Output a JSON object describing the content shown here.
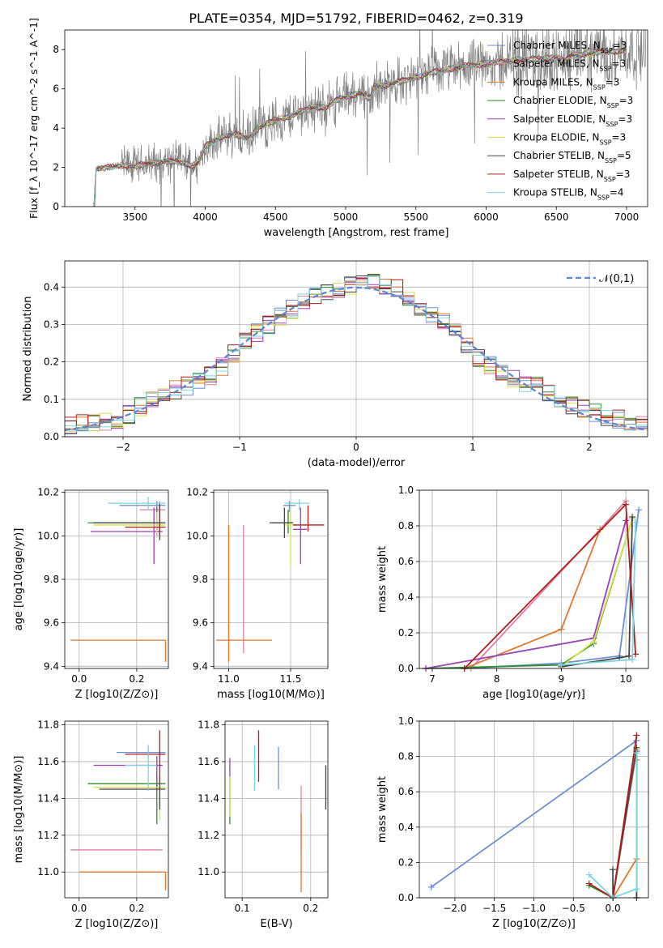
{
  "figure": {
    "title": "PLATE=0354, MJD=51792, FIBERID=0462, z=0.319"
  },
  "model_labels": [
    "Chabrier MILES, N_SSP=3",
    "Salpeter MILES, N_SSP=3",
    "Kroupa MILES, N_SSP=3",
    "Chabrier ELODIE, N_SSP=3",
    "Salpeter ELODIE, N_SSP=3",
    "Kroupa ELODIE, N_SSP=3",
    "Chabrier STELIB, N_SSP=5",
    "Salpeter STELIB, N_SSP=3",
    "Kroupa STELIB, N_SSP=4"
  ],
  "model_colors": [
    "#6a8fd6",
    "#e07fa9",
    "#e0772e",
    "#2e8b2e",
    "#9b3fb5",
    "#d8e04a",
    "#444444",
    "#b01c1c",
    "#7ad6e0"
  ],
  "chart_data": [
    {
      "id": "spectrum",
      "type": "line",
      "title": "PLATE=0354, MJD=51792, FIBERID=0462, z=0.319",
      "xlabel": "wavelength [Angstrom, rest frame]",
      "ylabel": "Flux [f_λ 10^-17 erg cm^-2 s^-1 A^-1]",
      "xlim": [
        3000,
        7150
      ],
      "ylim": [
        0,
        9
      ],
      "xticks": [
        3500,
        4000,
        4500,
        5000,
        5500,
        6000,
        6500,
        7000
      ],
      "yticks": [
        0,
        2,
        4,
        6,
        8
      ],
      "data_color": "#808080",
      "continuum_model": [
        [
          3200,
          0
        ],
        [
          3210,
          0
        ],
        [
          3220,
          1.9
        ],
        [
          3300,
          2.0
        ],
        [
          3400,
          2.1
        ],
        [
          3500,
          2.05
        ],
        [
          3600,
          2.2
        ],
        [
          3700,
          2.3
        ],
        [
          3800,
          2.3
        ],
        [
          3900,
          2.1
        ],
        [
          3950,
          2.2
        ],
        [
          4000,
          3.1
        ],
        [
          4100,
          3.5
        ],
        [
          4200,
          3.7
        ],
        [
          4300,
          3.5
        ],
        [
          4400,
          4.1
        ],
        [
          4500,
          4.4
        ],
        [
          4600,
          4.6
        ],
        [
          4700,
          4.9
        ],
        [
          4800,
          5.1
        ],
        [
          4860,
          5.0
        ],
        [
          4900,
          5.3
        ],
        [
          5000,
          5.6
        ],
        [
          5100,
          5.8
        ],
        [
          5175,
          5.5
        ],
        [
          5200,
          6.1
        ],
        [
          5300,
          6.2
        ],
        [
          5400,
          6.4
        ],
        [
          5500,
          6.6
        ],
        [
          5600,
          6.8
        ],
        [
          5700,
          6.95
        ],
        [
          5800,
          7.1
        ],
        [
          5900,
          7.2
        ],
        [
          6000,
          7.3
        ],
        [
          6100,
          7.35
        ],
        [
          6200,
          7.45
        ],
        [
          6300,
          7.5
        ],
        [
          6400,
          7.55
        ],
        [
          6500,
          7.6
        ],
        [
          6563,
          7.4
        ],
        [
          6600,
          7.7
        ],
        [
          6700,
          7.75
        ],
        [
          6800,
          7.85
        ],
        [
          6900,
          7.9
        ],
        [
          7000,
          7.95
        ]
      ],
      "series_names": [
        "Chabrier MILES, N_SSP=3",
        "Salpeter MILES, N_SSP=3",
        "Kroupa MILES, N_SSP=3",
        "Chabrier ELODIE, N_SSP=3",
        "Salpeter ELODIE, N_SSP=3",
        "Kroupa ELODIE, N_SSP=3",
        "Chabrier STELIB, N_SSP=5",
        "Salpeter STELIB, N_SSP=3",
        "Kroupa STELIB, N_SSP=4"
      ],
      "legend": "upper right"
    },
    {
      "id": "residuals",
      "type": "line",
      "xlabel": "(data-model)/error",
      "ylabel": "Normed distribution",
      "xlim": [
        -2.5,
        2.5
      ],
      "ylim": [
        0,
        0.47
      ],
      "xticks": [
        -2,
        -1,
        0,
        1,
        2
      ],
      "yticks": [
        0.0,
        0.1,
        0.2,
        0.3,
        0.4
      ],
      "reference": {
        "name": "𝒩(0,1)",
        "mean": 0,
        "sigma": 1,
        "color": "#5b84d4"
      },
      "bin_width": 0.1,
      "hist_envelope": [
        [
          -2.5,
          0.03
        ],
        [
          -2.2,
          0.04
        ],
        [
          -2.0,
          0.05
        ],
        [
          -1.8,
          0.09
        ],
        [
          -1.6,
          0.12
        ],
        [
          -1.4,
          0.14
        ],
        [
          -1.2,
          0.17
        ],
        [
          -1.0,
          0.24
        ],
        [
          -0.8,
          0.29
        ],
        [
          -0.6,
          0.33
        ],
        [
          -0.4,
          0.37
        ],
        [
          -0.2,
          0.39
        ],
        [
          0.0,
          0.41
        ],
        [
          0.2,
          0.41
        ],
        [
          0.4,
          0.39
        ],
        [
          0.6,
          0.33
        ],
        [
          0.8,
          0.3
        ],
        [
          1.0,
          0.22
        ],
        [
          1.2,
          0.18
        ],
        [
          1.4,
          0.15
        ],
        [
          1.6,
          0.13
        ],
        [
          1.8,
          0.09
        ],
        [
          2.0,
          0.07
        ],
        [
          2.2,
          0.05
        ],
        [
          2.5,
          0.035
        ]
      ],
      "legend": "upper right"
    },
    {
      "id": "age_vs_Z",
      "type": "scatter",
      "xlabel": "Z [log10(Z/Z⊙)]",
      "ylabel": "age  [log10(age/yr)]",
      "xlim": [
        -0.05,
        0.31
      ],
      "ylim": [
        9.39,
        10.21
      ],
      "xticks": [
        0.0,
        0.2
      ],
      "yticks": [
        9.4,
        9.6,
        9.8,
        10.0,
        10.2
      ],
      "errorbars": [
        {
          "m": 0,
          "x": 0.27,
          "xlo": 0.14,
          "xhi": 0.3,
          "y": 10.14,
          "ylo": 10.12,
          "yhi": 10.16
        },
        {
          "m": 1,
          "x": 0.28,
          "xlo": 0.21,
          "xhi": 0.3,
          "y": 10.12,
          "ylo": 10.06,
          "yhi": 10.16
        },
        {
          "m": 2,
          "x": 0.3,
          "xlo": -0.03,
          "xhi": 0.3,
          "y": 9.52,
          "ylo": 9.42,
          "yhi": 9.52
        },
        {
          "m": 3,
          "x": 0.27,
          "xlo": 0.03,
          "xhi": 0.3,
          "y": 10.06,
          "ylo": 10.0,
          "yhi": 10.13
        },
        {
          "m": 4,
          "x": 0.26,
          "xlo": 0.04,
          "xhi": 0.29,
          "y": 10.02,
          "ylo": 9.87,
          "yhi": 10.13
        },
        {
          "m": 5,
          "x": 0.27,
          "xlo": 0.05,
          "xhi": 0.3,
          "y": 10.05,
          "ylo": 9.99,
          "yhi": 10.11
        },
        {
          "m": 6,
          "x": 0.28,
          "xlo": 0.05,
          "xhi": 0.3,
          "y": 10.06,
          "ylo": 9.98,
          "yhi": 10.15
        },
        {
          "m": 7,
          "x": 0.28,
          "xlo": 0.16,
          "xhi": 0.3,
          "y": 10.04,
          "ylo": 10.0,
          "yhi": 10.14
        },
        {
          "m": 8,
          "x": 0.24,
          "xlo": 0.1,
          "xhi": 0.3,
          "y": 10.15,
          "ylo": 10.12,
          "yhi": 10.18
        }
      ]
    },
    {
      "id": "age_vs_mass",
      "type": "scatter",
      "xlabel": "mass [log10(M/M⊙)]",
      "ylabel": "",
      "xlim": [
        10.88,
        11.8
      ],
      "ylim": [
        9.39,
        10.21
      ],
      "xticks": [
        11.0,
        11.5
      ],
      "yticks": [
        9.4,
        9.6,
        9.8,
        10.0,
        10.2
      ],
      "errorbars": [
        {
          "m": 0,
          "x": 11.49,
          "xlo": 11.44,
          "xhi": 11.54,
          "y": 10.14,
          "ylo": 10.11,
          "yhi": 10.16
        },
        {
          "m": 1,
          "x": 11.12,
          "xlo": 11.12,
          "xhi": 11.12,
          "y": 9.52,
          "ylo": 9.46,
          "yhi": 10.05
        },
        {
          "m": 2,
          "x": 11.0,
          "xlo": 10.9,
          "xhi": 11.35,
          "y": 9.52,
          "ylo": 9.42,
          "yhi": 10.05
        },
        {
          "m": 3,
          "x": 11.48,
          "xlo": 11.35,
          "xhi": 11.52,
          "y": 10.06,
          "ylo": 10.01,
          "yhi": 10.12
        },
        {
          "m": 4,
          "x": 11.58,
          "xlo": 11.52,
          "xhi": 11.63,
          "y": 10.03,
          "ylo": 9.87,
          "yhi": 10.13
        },
        {
          "m": 5,
          "x": 11.5,
          "xlo": 11.45,
          "xhi": 11.55,
          "y": 10.05,
          "ylo": 9.86,
          "yhi": 10.11
        },
        {
          "m": 6,
          "x": 11.45,
          "xlo": 11.33,
          "xhi": 11.52,
          "y": 10.06,
          "ylo": 9.99,
          "yhi": 10.13
        },
        {
          "m": 7,
          "x": 11.64,
          "xlo": 11.52,
          "xhi": 11.77,
          "y": 10.05,
          "ylo": 10.02,
          "yhi": 10.14
        },
        {
          "m": 8,
          "x": 11.57,
          "xlo": 11.45,
          "xhi": 11.65,
          "y": 10.15,
          "ylo": 10.12,
          "yhi": 10.17
        }
      ]
    },
    {
      "id": "mass_weight_vs_age",
      "type": "line",
      "xlabel": "age  [log10(age/yr)]",
      "ylabel": "mass weight",
      "xlim": [
        6.8,
        10.35
      ],
      "ylim": [
        0.0,
        1.0
      ],
      "xticks": [
        7,
        8,
        9,
        10
      ],
      "yticks": [
        0.0,
        0.2,
        0.4,
        0.6,
        0.8,
        1.0
      ],
      "series": [
        {
          "m": 0,
          "points": [
            [
              7.5,
              0.0
            ],
            [
              9.0,
              0.03
            ],
            [
              9.9,
              0.07
            ],
            [
              10.2,
              0.89
            ]
          ]
        },
        {
          "m": 1,
          "points": [
            [
              7.6,
              0.0
            ],
            [
              9.6,
              0.78
            ],
            [
              10.0,
              0.94
            ]
          ]
        },
        {
          "m": 2,
          "points": [
            [
              7.5,
              0.0
            ],
            [
              9.0,
              0.22
            ],
            [
              9.6,
              0.78
            ]
          ]
        },
        {
          "m": 3,
          "points": [
            [
              6.9,
              0.0
            ],
            [
              9.0,
              0.02
            ],
            [
              9.5,
              0.14
            ],
            [
              10.1,
              0.84
            ]
          ]
        },
        {
          "m": 4,
          "points": [
            [
              6.9,
              0.0
            ],
            [
              9.5,
              0.17
            ],
            [
              10.0,
              0.83
            ]
          ]
        },
        {
          "m": 5,
          "points": [
            [
              9.0,
              0.01
            ],
            [
              9.5,
              0.15
            ],
            [
              10.1,
              0.84
            ]
          ]
        },
        {
          "m": 6,
          "points": [
            [
              9.0,
              0.01
            ],
            [
              9.9,
              0.06
            ],
            [
              10.05,
              0.07
            ],
            [
              10.1,
              0.85
            ]
          ]
        },
        {
          "m": 7,
          "points": [
            [
              7.5,
              0.0
            ],
            [
              10.0,
              0.92
            ],
            [
              10.15,
              0.08
            ]
          ]
        },
        {
          "m": 8,
          "points": [
            [
              9.0,
              0.02
            ],
            [
              10.1,
              0.05
            ],
            [
              10.15,
              0.82
            ]
          ]
        }
      ]
    },
    {
      "id": "mass_vs_Z",
      "type": "scatter",
      "xlabel": "Z [log10(Z/Z⊙)]",
      "ylabel": "mass [log10(M/M⊙)]",
      "xlim": [
        -0.05,
        0.31
      ],
      "ylim": [
        10.86,
        11.82
      ],
      "xticks": [
        0.0,
        0.2
      ],
      "yticks": [
        11.0,
        11.2,
        11.4,
        11.6,
        11.8
      ],
      "errorbars": [
        {
          "m": 0,
          "x": 0.24,
          "xlo": 0.13,
          "xhi": 0.3,
          "y": 11.65,
          "ylo": 11.62,
          "yhi": 11.68
        },
        {
          "m": 1,
          "x": 0.29,
          "xlo": -0.03,
          "xhi": 0.29,
          "y": 11.12,
          "ylo": 11.12,
          "yhi": 11.12
        },
        {
          "m": 2,
          "x": 0.3,
          "xlo": 0.0,
          "xhi": 0.3,
          "y": 11.0,
          "ylo": 10.9,
          "yhi": 11.0
        },
        {
          "m": 3,
          "x": 0.27,
          "xlo": 0.03,
          "xhi": 0.3,
          "y": 11.48,
          "ylo": 11.26,
          "yhi": 11.52
        },
        {
          "m": 4,
          "x": 0.27,
          "xlo": 0.05,
          "xhi": 0.29,
          "y": 11.58,
          "ylo": 11.44,
          "yhi": 11.63
        },
        {
          "m": 5,
          "x": 0.28,
          "xlo": 0.05,
          "xhi": 0.3,
          "y": 11.46,
          "ylo": 11.28,
          "yhi": 11.53
        },
        {
          "m": 6,
          "x": 0.28,
          "xlo": 0.07,
          "xhi": 0.3,
          "y": 11.45,
          "ylo": 11.34,
          "yhi": 11.52
        },
        {
          "m": 7,
          "x": 0.28,
          "xlo": 0.16,
          "xhi": 0.3,
          "y": 11.64,
          "ylo": 11.48,
          "yhi": 11.77
        },
        {
          "m": 8,
          "x": 0.24,
          "xlo": 0.16,
          "xhi": 0.27,
          "y": 11.58,
          "ylo": 11.44,
          "yhi": 11.69
        }
      ]
    },
    {
      "id": "mass_vs_ebv",
      "type": "scatter",
      "xlabel": "E(B-V)",
      "ylabel": "",
      "xlim": [
        0.075,
        0.225
      ],
      "ylim": [
        10.86,
        11.82
      ],
      "xticks": [
        0.1,
        0.2
      ],
      "yticks": [
        11.0,
        11.2,
        11.4,
        11.6,
        11.8
      ],
      "errorbars": [
        {
          "m": 0,
          "x": 0.153,
          "ylo": 11.45,
          "yhi": 11.68
        },
        {
          "m": 1,
          "x": 0.186,
          "ylo": 11.12,
          "yhi": 11.47
        },
        {
          "m": 2,
          "x": 0.186,
          "ylo": 10.89,
          "yhi": 11.32
        },
        {
          "m": 3,
          "x": 0.082,
          "ylo": 11.26,
          "yhi": 11.52
        },
        {
          "m": 4,
          "x": 0.082,
          "ylo": 11.52,
          "yhi": 11.62
        },
        {
          "m": 5,
          "x": 0.082,
          "ylo": 11.3,
          "yhi": 11.52
        },
        {
          "m": 6,
          "x": 0.222,
          "ylo": 11.34,
          "yhi": 11.58
        },
        {
          "m": 7,
          "x": 0.124,
          "ylo": 11.49,
          "yhi": 11.77
        },
        {
          "m": 8,
          "x": 0.118,
          "ylo": 11.44,
          "yhi": 11.69
        }
      ]
    },
    {
      "id": "mass_weight_vs_Z",
      "type": "line",
      "xlabel": "Z [log10(Z/Z⊙)]",
      "ylabel": "mass weight",
      "xlim": [
        -2.45,
        0.45
      ],
      "ylim": [
        0.0,
        1.0
      ],
      "xticks": [
        -2.0,
        -1.5,
        -1.0,
        -0.5,
        0.0
      ],
      "yticks": [
        0.0,
        0.2,
        0.4,
        0.6,
        0.8,
        1.0
      ],
      "series": [
        {
          "m": 0,
          "points": [
            [
              -2.3,
              0.06
            ],
            [
              0.3,
              0.89
            ]
          ]
        },
        {
          "m": 1,
          "points": [
            [
              0.3,
              0.0
            ],
            [
              0.3,
              0.78
            ]
          ]
        },
        {
          "m": 2,
          "points": [
            [
              0.0,
              0.0
            ],
            [
              0.3,
              0.22
            ],
            [
              0.3,
              0.78
            ]
          ]
        },
        {
          "m": 3,
          "points": [
            [
              -0.3,
              0.07
            ],
            [
              0.0,
              0.0
            ],
            [
              0.3,
              0.84
            ]
          ]
        },
        {
          "m": 4,
          "points": [
            [
              0.0,
              0.0
            ],
            [
              0.3,
              0.83
            ]
          ]
        },
        {
          "m": 5,
          "points": [
            [
              0.0,
              0.0
            ],
            [
              0.3,
              0.84
            ]
          ]
        },
        {
          "m": 6,
          "points": [
            [
              0.0,
              0.16
            ],
            [
              0.0,
              0.0
            ],
            [
              0.3,
              0.85
            ],
            [
              0.3,
              0.0
            ]
          ]
        },
        {
          "m": 7,
          "points": [
            [
              -0.3,
              0.08
            ],
            [
              0.0,
              0.0
            ],
            [
              0.3,
              0.92
            ]
          ]
        },
        {
          "m": 8,
          "points": [
            [
              -0.3,
              0.13
            ],
            [
              0.0,
              0.0
            ],
            [
              0.3,
              0.05
            ],
            [
              0.3,
              0.82
            ]
          ]
        }
      ]
    }
  ]
}
